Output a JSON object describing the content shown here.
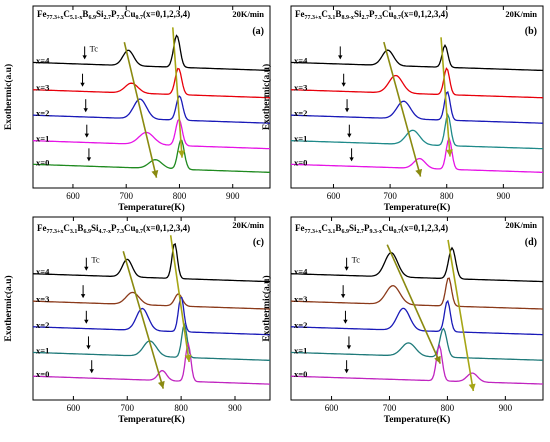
{
  "chart_data": [
    {
      "type": "line",
      "panel_label": "(a)",
      "title_parts": [
        [
          "Fe",
          ""
        ],
        [
          "77.3+x",
          "s"
        ],
        [
          "C",
          ""
        ],
        [
          "5.1-x",
          "s"
        ],
        [
          "B",
          ""
        ],
        [
          "6.9",
          "s"
        ],
        [
          "Si",
          ""
        ],
        [
          "2.7",
          "s"
        ],
        [
          "P",
          ""
        ],
        [
          "7.3",
          "s"
        ],
        [
          "Cu",
          ""
        ],
        [
          "0.7",
          "s"
        ],
        [
          "(x=0,1,2,3,4)",
          ""
        ]
      ],
      "rate": "20K/min",
      "xlabel": "Temperature(K)",
      "ylabel": "Exothermic(a.u)",
      "xlim": [
        525,
        970
      ],
      "xticks": [
        600,
        700,
        800,
        900
      ],
      "tc_label": "Tc",
      "series": [
        {
          "name": "x=4",
          "color": "#000000",
          "tc": 622,
          "peaks": [
            [
              704,
              0.7,
              10
            ],
            [
              795,
              1.45,
              6
            ]
          ]
        },
        {
          "name": "x=3",
          "color": "#e8000b",
          "tc": 618,
          "peaks": [
            [
              710,
              0.45,
              12
            ],
            [
              798,
              1.2,
              6
            ]
          ]
        },
        {
          "name": "x=2",
          "color": "#1a1ab8",
          "tc": 624,
          "peaks": [
            [
              726,
              0.9,
              12
            ],
            [
              800,
              1.1,
              6
            ]
          ]
        },
        {
          "name": "x=1",
          "color": "#e614e6",
          "tc": 626,
          "peaks": [
            [
              738,
              0.55,
              14
            ],
            [
              799,
              1.2,
              6
            ]
          ]
        },
        {
          "name": "x=0",
          "color": "#1f8a1f",
          "tc": 630,
          "peaks": [
            [
              755,
              0.4,
              12
            ],
            [
              803,
              1.35,
              6
            ]
          ]
        }
      ]
    },
    {
      "type": "line",
      "panel_label": "(b)",
      "title_parts": [
        [
          "Fe",
          ""
        ],
        [
          "77.3+x",
          "s"
        ],
        [
          "C",
          ""
        ],
        [
          "3.1",
          "s"
        ],
        [
          "B",
          ""
        ],
        [
          "8.9-x",
          "s"
        ],
        [
          "Si",
          ""
        ],
        [
          "2.7",
          "s"
        ],
        [
          "P",
          ""
        ],
        [
          "7.3",
          "s"
        ],
        [
          "Cu",
          ""
        ],
        [
          "0.7",
          "s"
        ],
        [
          "(x=0,1,2,3,4)",
          ""
        ]
      ],
      "rate": "20K/min",
      "xlabel": "Temperature(K)",
      "ylabel": "Exothermic(a.u)",
      "xlim": [
        525,
        970
      ],
      "xticks": [
        600,
        700,
        800,
        900
      ],
      "tc_label": "",
      "series": [
        {
          "name": "x=4",
          "color": "#000000",
          "tc": 612,
          "peaks": [
            [
              696,
              0.7,
              10
            ],
            [
              797,
              1.0,
              5
            ]
          ]
        },
        {
          "name": "x=3",
          "color": "#e8000b",
          "tc": 618,
          "peaks": [
            [
              710,
              0.8,
              12
            ],
            [
              800,
              1.2,
              5
            ]
          ]
        },
        {
          "name": "x=2",
          "color": "#1a1ab8",
          "tc": 624,
          "peaks": [
            [
              724,
              0.8,
              12
            ],
            [
              801,
              1.3,
              5
            ]
          ]
        },
        {
          "name": "x=1",
          "color": "#1f8a8a",
          "tc": 628,
          "peaks": [
            [
              740,
              0.65,
              12
            ],
            [
              802,
              1.4,
              5
            ]
          ]
        },
        {
          "name": "x=0",
          "color": "#e614e6",
          "tc": 632,
          "peaks": [
            [
              752,
              0.45,
              10
            ],
            [
              804,
              1.4,
              5
            ]
          ]
        }
      ]
    },
    {
      "type": "line",
      "panel_label": "(c)",
      "title_parts": [
        [
          "Fe",
          ""
        ],
        [
          "77.3+x",
          "s"
        ],
        [
          "C",
          ""
        ],
        [
          "3.1",
          "s"
        ],
        [
          "B",
          ""
        ],
        [
          "6.9",
          "s"
        ],
        [
          "Si",
          ""
        ],
        [
          "4.7-x",
          "s"
        ],
        [
          "P",
          ""
        ],
        [
          "7.3",
          "s"
        ],
        [
          "Cu",
          ""
        ],
        [
          "0.7",
          "s"
        ],
        [
          "(x=0,1,2,3,4)",
          ""
        ]
      ],
      "rate": "20K/min",
      "xlabel": "Temperature(K)",
      "ylabel": "Exothermic(a.u)",
      "xlim": [
        525,
        965
      ],
      "xticks": [
        600,
        700,
        800,
        900
      ],
      "tc_label": "Tc",
      "series": [
        {
          "name": "x=4",
          "color": "#000000",
          "tc": 624,
          "peaks": [
            [
              700,
              0.8,
              9
            ],
            [
              788,
              1.6,
              5
            ]
          ]
        },
        {
          "name": "x=3",
          "color": "#8b3a1a",
          "tc": 618,
          "peaks": [
            [
              710,
              0.55,
              12
            ],
            [
              795,
              0.55,
              7
            ]
          ]
        },
        {
          "name": "x=2",
          "color": "#1a1ab8",
          "tc": 624,
          "peaks": [
            [
              728,
              1.0,
              11
            ],
            [
              800,
              1.6,
              5
            ]
          ]
        },
        {
          "name": "x=1",
          "color": "#1f7a7a",
          "tc": 628,
          "peaks": [
            [
              742,
              0.7,
              12
            ],
            [
              806,
              1.5,
              5
            ]
          ]
        },
        {
          "name": "x=0",
          "color": "#c025c0",
          "tc": 634,
          "peaks": [
            [
              765,
              0.45,
              8
            ],
            [
              813,
              1.7,
              5
            ]
          ]
        }
      ]
    },
    {
      "type": "line",
      "panel_label": "(d)",
      "title_parts": [
        [
          "Fe",
          ""
        ],
        [
          "77.3+x",
          "s"
        ],
        [
          "C",
          ""
        ],
        [
          "3.1",
          "s"
        ],
        [
          "B",
          ""
        ],
        [
          "6.9",
          "s"
        ],
        [
          "Si",
          ""
        ],
        [
          "2.7",
          "s"
        ],
        [
          "P",
          ""
        ],
        [
          "9.3-x",
          "s"
        ],
        [
          "Cu",
          ""
        ],
        [
          "0.7",
          "s"
        ],
        [
          "(x=0,1,2,3,4)",
          ""
        ]
      ],
      "rate": "20K/min",
      "xlabel": "Temperature(K)",
      "ylabel": "Exothermic(a.u)",
      "xlim": [
        530,
        965
      ],
      "xticks": [
        600,
        700,
        800,
        900
      ],
      "tc_label": "Tc",
      "series": [
        {
          "name": "x=4",
          "color": "#000000",
          "tc": 626,
          "peaks": [
            [
              703,
              1.1,
              11
            ],
            [
              808,
              1.4,
              6
            ]
          ]
        },
        {
          "name": "x=3",
          "color": "#8b3a1a",
          "tc": 620,
          "peaks": [
            [
              706,
              0.85,
              12
            ],
            [
              802,
              1.3,
              5
            ]
          ]
        },
        {
          "name": "x=2",
          "color": "#1a1ab8",
          "tc": 624,
          "peaks": [
            [
              724,
              1.0,
              11
            ],
            [
              800,
              1.4,
              5
            ]
          ]
        },
        {
          "name": "x=1",
          "color": "#1f7a7a",
          "tc": 630,
          "peaks": [
            [
              733,
              0.6,
              12
            ],
            [
              793,
              1.3,
              6
            ]
          ]
        },
        {
          "name": "x=0",
          "color": "#c025c0",
          "tc": 626,
          "peaks": [
            [
              786,
              1.6,
              5
            ],
            [
              843,
              0.4,
              9
            ]
          ]
        }
      ]
    }
  ]
}
